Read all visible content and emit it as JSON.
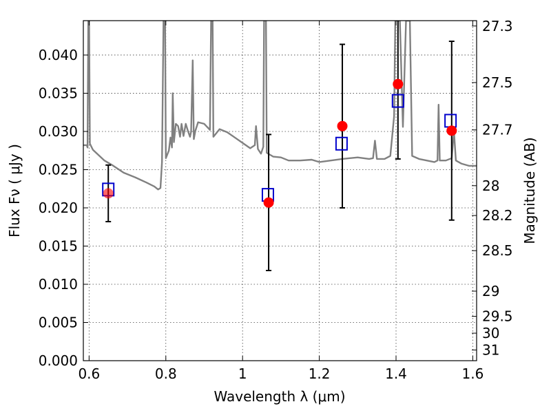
{
  "chart_data": {
    "type": "scatter",
    "title": "",
    "xlabel": "Wavelength  λ (μm)",
    "ylabel": "Flux  Fν  ( μJy )",
    "ylabel_right": "Magnitude (AB)",
    "xlim": [
      0.585,
      1.61
    ],
    "ylim": [
      0.0,
      0.0445
    ],
    "grid": true,
    "x_ticks": [
      {
        "value": 0.6,
        "label": "0.6"
      },
      {
        "value": 0.8,
        "label": "0.8"
      },
      {
        "value": 1.0,
        "label": "1"
      },
      {
        "value": 1.2,
        "label": "1.2"
      },
      {
        "value": 1.4,
        "label": "1.4"
      },
      {
        "value": 1.6,
        "label": "1.6"
      }
    ],
    "y_ticks": [
      {
        "value": 0.0,
        "label": "0.000"
      },
      {
        "value": 0.005,
        "label": "0.005"
      },
      {
        "value": 0.01,
        "label": "0.010"
      },
      {
        "value": 0.015,
        "label": "0.015"
      },
      {
        "value": 0.02,
        "label": "0.020"
      },
      {
        "value": 0.025,
        "label": "0.025"
      },
      {
        "value": 0.03,
        "label": "0.030"
      },
      {
        "value": 0.035,
        "label": "0.035"
      },
      {
        "value": 0.04,
        "label": "0.040"
      }
    ],
    "right_ticks": [
      {
        "flux": 0.0438,
        "label": "27.3"
      },
      {
        "flux": 0.0364,
        "label": "27.5"
      },
      {
        "flux": 0.0302,
        "label": "27.7"
      },
      {
        "flux": 0.0229,
        "label": "28"
      },
      {
        "flux": 0.019,
        "label": "28.2"
      },
      {
        "flux": 0.0144,
        "label": "28.5"
      },
      {
        "flux": 0.0091,
        "label": "29"
      },
      {
        "flux": 0.0058,
        "label": "29.5"
      },
      {
        "flux": 0.0036,
        "label": "30"
      },
      {
        "flux": 0.0014,
        "label": "31"
      }
    ],
    "observed": {
      "color": "#ff0000",
      "points": [
        {
          "x": 0.65,
          "y": 0.0219,
          "err": 0.0037
        },
        {
          "x": 1.068,
          "y": 0.0207,
          "err": 0.0089
        },
        {
          "x": 1.26,
          "y": 0.0307,
          "err": 0.0107
        },
        {
          "x": 1.405,
          "y": 0.0362,
          "err": 0.0098
        },
        {
          "x": 1.545,
          "y": 0.0301,
          "err": 0.0117
        }
      ]
    },
    "model_photometry": {
      "color": "#0000cc",
      "points": [
        {
          "x": 0.65,
          "y": 0.0224
        },
        {
          "x": 1.066,
          "y": 0.0217
        },
        {
          "x": 1.258,
          "y": 0.0284
        },
        {
          "x": 1.405,
          "y": 0.034
        },
        {
          "x": 1.542,
          "y": 0.0314
        }
      ]
    },
    "model_spectrum": {
      "color": "#808080",
      "points": [
        [
          0.585,
          0.0282
        ],
        [
          0.594,
          0.0282
        ],
        [
          0.596,
          0.0279
        ],
        [
          0.598,
          0.0445
        ],
        [
          0.6,
          0.0445
        ],
        [
          0.602,
          0.0284
        ],
        [
          0.61,
          0.0276
        ],
        [
          0.64,
          0.0262
        ],
        [
          0.66,
          0.0256
        ],
        [
          0.69,
          0.0246
        ],
        [
          0.72,
          0.024
        ],
        [
          0.75,
          0.0233
        ],
        [
          0.77,
          0.0228
        ],
        [
          0.78,
          0.0224
        ],
        [
          0.786,
          0.0226
        ],
        [
          0.79,
          0.026
        ],
        [
          0.794,
          0.0445
        ],
        [
          0.798,
          0.0445
        ],
        [
          0.8,
          0.0265
        ],
        [
          0.808,
          0.0275
        ],
        [
          0.812,
          0.0292
        ],
        [
          0.816,
          0.0279
        ],
        [
          0.818,
          0.035
        ],
        [
          0.821,
          0.0286
        ],
        [
          0.826,
          0.031
        ],
        [
          0.832,
          0.0307
        ],
        [
          0.837,
          0.0293
        ],
        [
          0.841,
          0.031
        ],
        [
          0.846,
          0.0294
        ],
        [
          0.852,
          0.031
        ],
        [
          0.858,
          0.03
        ],
        [
          0.863,
          0.0293
        ],
        [
          0.866,
          0.03
        ],
        [
          0.87,
          0.0393
        ],
        [
          0.873,
          0.029
        ],
        [
          0.877,
          0.0301
        ],
        [
          0.884,
          0.0312
        ],
        [
          0.9,
          0.031
        ],
        [
          0.915,
          0.0302
        ],
        [
          0.918,
          0.0445
        ],
        [
          0.922,
          0.0445
        ],
        [
          0.924,
          0.0293
        ],
        [
          0.94,
          0.0303
        ],
        [
          0.96,
          0.0299
        ],
        [
          0.98,
          0.0292
        ],
        [
          1.0,
          0.0285
        ],
        [
          1.02,
          0.0278
        ],
        [
          1.032,
          0.0282
        ],
        [
          1.035,
          0.0307
        ],
        [
          1.04,
          0.0277
        ],
        [
          1.048,
          0.0271
        ],
        [
          1.054,
          0.028
        ],
        [
          1.056,
          0.0445
        ],
        [
          1.061,
          0.0445
        ],
        [
          1.063,
          0.0272
        ],
        [
          1.08,
          0.0267
        ],
        [
          1.1,
          0.0266
        ],
        [
          1.12,
          0.0262
        ],
        [
          1.15,
          0.0262
        ],
        [
          1.18,
          0.0263
        ],
        [
          1.2,
          0.026
        ],
        [
          1.23,
          0.0262
        ],
        [
          1.26,
          0.0264
        ],
        [
          1.3,
          0.0266
        ],
        [
          1.33,
          0.0264
        ],
        [
          1.34,
          0.0265
        ],
        [
          1.345,
          0.0288
        ],
        [
          1.35,
          0.0264
        ],
        [
          1.37,
          0.0264
        ],
        [
          1.385,
          0.0268
        ],
        [
          1.395,
          0.032
        ],
        [
          1.398,
          0.0445
        ],
        [
          1.41,
          0.0445
        ],
        [
          1.418,
          0.0306
        ],
        [
          1.426,
          0.0445
        ],
        [
          1.436,
          0.0445
        ],
        [
          1.442,
          0.0268
        ],
        [
          1.46,
          0.0264
        ],
        [
          1.48,
          0.0262
        ],
        [
          1.5,
          0.026
        ],
        [
          1.508,
          0.0262
        ],
        [
          1.511,
          0.0335
        ],
        [
          1.514,
          0.0262
        ],
        [
          1.53,
          0.0262
        ],
        [
          1.545,
          0.0265
        ],
        [
          1.551,
          0.03
        ],
        [
          1.556,
          0.0262
        ],
        [
          1.57,
          0.0258
        ],
        [
          1.59,
          0.0255
        ],
        [
          1.61,
          0.0255
        ]
      ]
    }
  }
}
